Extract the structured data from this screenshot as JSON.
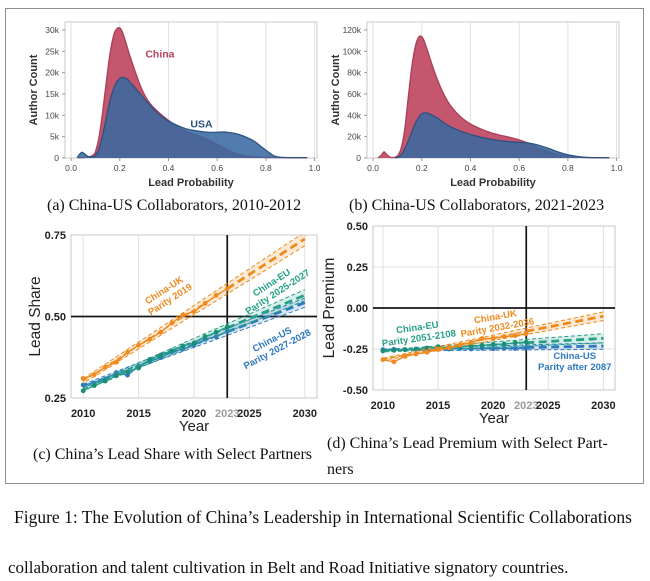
{
  "figure": {
    "caption": "Figure 1: The Evolution of China’s Leadership in International Scientific Collaborations",
    "body_text": "collaboration and talent cultivation in Belt and Road Initiative signatory countries."
  },
  "captions": {
    "a": "(a) China-US Collaborators, 2010-2012",
    "b": "(b) China-US Collaborators, 2021-2023",
    "c": "(c) China’s Lead Share with Select Partners",
    "d_line1": "(d) China’s Lead Premium with Select Part-",
    "d_line2": "ners"
  },
  "colors": {
    "grid": "#e1e1e1",
    "panel_border": "#c9c9c9",
    "axis_black": "#141414",
    "tick_text": "#444444",
    "gray_year": "#9a9a9a",
    "china_red": "#C4566E",
    "usa_blue": "#38689E",
    "uk_orange": "#EE8A1E",
    "eu_green": "#27A088",
    "us_blue": "#2F7ABF"
  },
  "chart_data": [
    {
      "id": "a",
      "type": "area",
      "xlabel": "Lead Probability",
      "ylabel": "Author Count",
      "xlim": [
        -0.025,
        1.01
      ],
      "ymax": 31875,
      "x_ticks": [
        0,
        0.2,
        0.4,
        0.6,
        0.8,
        1.0
      ],
      "x_tick_labels": [
        "0.0",
        "0.2",
        "0.4",
        "0.6",
        "0.8",
        "1.0"
      ],
      "y_ticks": [
        0,
        5000,
        10000,
        15000,
        20000,
        25000,
        30000
      ],
      "y_tick_labels": [
        "0",
        "5k",
        "10k",
        "15k",
        "20k",
        "25k",
        "30k"
      ],
      "series": [
        {
          "name": "China",
          "color": "#C4566E",
          "line_color": "#A63B55",
          "opacity": 1,
          "points": [
            [
              0.03,
              0
            ],
            [
              0.06,
              150
            ],
            [
              0.085,
              500
            ],
            [
              0.1,
              1500
            ],
            [
              0.115,
              5000
            ],
            [
              0.13,
              11000
            ],
            [
              0.145,
              18000
            ],
            [
              0.16,
              24500
            ],
            [
              0.175,
              28800
            ],
            [
              0.19,
              30400
            ],
            [
              0.205,
              30200
            ],
            [
              0.22,
              28000
            ],
            [
              0.24,
              24200
            ],
            [
              0.265,
              20000
            ],
            [
              0.29,
              16200
            ],
            [
              0.32,
              13100
            ],
            [
              0.36,
              10700
            ],
            [
              0.4,
              8800
            ],
            [
              0.44,
              7200
            ],
            [
              0.48,
              6100
            ],
            [
              0.52,
              5300
            ],
            [
              0.56,
              4400
            ],
            [
              0.6,
              3200
            ],
            [
              0.64,
              2000
            ],
            [
              0.68,
              1000
            ],
            [
              0.72,
              450
            ],
            [
              0.78,
              150
            ],
            [
              0.85,
              90
            ],
            [
              0.97,
              60
            ]
          ]
        },
        {
          "name": "USA",
          "color": "#38689E",
          "line_color": "#2B4F7E",
          "opacity": 0.87,
          "points": [
            [
              0.025,
              50
            ],
            [
              0.035,
              900
            ],
            [
              0.045,
              1350
            ],
            [
              0.055,
              1000
            ],
            [
              0.07,
              350
            ],
            [
              0.085,
              250
            ],
            [
              0.1,
              600
            ],
            [
              0.115,
              2200
            ],
            [
              0.13,
              5500
            ],
            [
              0.145,
              9500
            ],
            [
              0.16,
              13500
            ],
            [
              0.175,
              16300
            ],
            [
              0.19,
              18000
            ],
            [
              0.21,
              18900
            ],
            [
              0.23,
              18500
            ],
            [
              0.25,
              17300
            ],
            [
              0.28,
              15300
            ],
            [
              0.31,
              13300
            ],
            [
              0.35,
              10800
            ],
            [
              0.39,
              9000
            ],
            [
              0.43,
              7800
            ],
            [
              0.47,
              6900
            ],
            [
              0.51,
              6400
            ],
            [
              0.55,
              6100
            ],
            [
              0.59,
              6000
            ],
            [
              0.63,
              6100
            ],
            [
              0.67,
              5800
            ],
            [
              0.71,
              5100
            ],
            [
              0.75,
              4000
            ],
            [
              0.78,
              2700
            ],
            [
              0.81,
              1400
            ],
            [
              0.83,
              600
            ],
            [
              0.85,
              250
            ],
            [
              0.88,
              120
            ],
            [
              0.97,
              80
            ]
          ]
        }
      ],
      "annotations": [
        {
          "text": "China",
          "x": 0.305,
          "y": 23500,
          "color": "#B8415C"
        },
        {
          "text": "USA",
          "x": 0.49,
          "y": 7100,
          "color": "#2B4F7E"
        }
      ]
    },
    {
      "id": "b",
      "type": "area",
      "xlabel": "Lead Probability",
      "ylabel": "Author Count",
      "xlim": [
        -0.025,
        1.01
      ],
      "ymax": 127500,
      "x_ticks": [
        0,
        0.2,
        0.4,
        0.6,
        0.8,
        1.0
      ],
      "x_tick_labels": [
        "0.0",
        "0.2",
        "0.4",
        "0.6",
        "0.8",
        "1.0"
      ],
      "y_ticks": [
        0,
        20000,
        40000,
        60000,
        80000,
        100000,
        120000
      ],
      "y_tick_labels": [
        "0",
        "20k",
        "40k",
        "60k",
        "80k",
        "100k",
        "120k"
      ],
      "series": [
        {
          "name": "China",
          "color": "#C4566E",
          "line_color": "#A63B55",
          "opacity": 1,
          "points": [
            [
              0.02,
              100
            ],
            [
              0.035,
              3000
            ],
            [
              0.045,
              5800
            ],
            [
              0.055,
              3500
            ],
            [
              0.07,
              800
            ],
            [
              0.085,
              600
            ],
            [
              0.1,
              2000
            ],
            [
              0.115,
              9000
            ],
            [
              0.13,
              27000
            ],
            [
              0.145,
              58000
            ],
            [
              0.16,
              87000
            ],
            [
              0.175,
              106000
            ],
            [
              0.19,
              114000
            ],
            [
              0.205,
              112000
            ],
            [
              0.22,
              103000
            ],
            [
              0.24,
              89000
            ],
            [
              0.265,
              73000
            ],
            [
              0.29,
              60000
            ],
            [
              0.32,
              48500
            ],
            [
              0.36,
              38500
            ],
            [
              0.4,
              32000
            ],
            [
              0.44,
              27500
            ],
            [
              0.48,
              24000
            ],
            [
              0.52,
              21500
            ],
            [
              0.56,
              19500
            ],
            [
              0.6,
              17000
            ],
            [
              0.63,
              14500
            ],
            [
              0.66,
              11500
            ],
            [
              0.7,
              7800
            ],
            [
              0.74,
              4600
            ],
            [
              0.78,
              2400
            ],
            [
              0.82,
              1200
            ],
            [
              0.86,
              600
            ],
            [
              0.9,
              350
            ],
            [
              0.97,
              250
            ]
          ]
        },
        {
          "name": "USA",
          "color": "#38689E",
          "line_color": "#2B4F7E",
          "opacity": 0.87,
          "points": [
            [
              0.09,
              100
            ],
            [
              0.105,
              1000
            ],
            [
              0.12,
              4500
            ],
            [
              0.135,
              11000
            ],
            [
              0.15,
              19000
            ],
            [
              0.165,
              28000
            ],
            [
              0.18,
              35500
            ],
            [
              0.195,
              40500
            ],
            [
              0.21,
              42300
            ],
            [
              0.225,
              42000
            ],
            [
              0.245,
              40000
            ],
            [
              0.27,
              36500
            ],
            [
              0.3,
              31500
            ],
            [
              0.34,
              27000
            ],
            [
              0.38,
              23500
            ],
            [
              0.42,
              20800
            ],
            [
              0.46,
              18600
            ],
            [
              0.5,
              17000
            ],
            [
              0.54,
              15800
            ],
            [
              0.58,
              15000
            ],
            [
              0.62,
              14400
            ],
            [
              0.65,
              13600
            ],
            [
              0.68,
              12000
            ],
            [
              0.72,
              9000
            ],
            [
              0.76,
              5600
            ],
            [
              0.8,
              3000
            ],
            [
              0.84,
              1400
            ],
            [
              0.88,
              600
            ],
            [
              0.93,
              300
            ],
            [
              0.97,
              200
            ]
          ]
        }
      ],
      "annotations": []
    },
    {
      "id": "c",
      "type": "line",
      "xlabel": "Year",
      "ylabel": "Lead Share",
      "xlim": [
        2008.9,
        2031.1
      ],
      "ylim": [
        0.25,
        0.75
      ],
      "x_ticks": [
        {
          "v": 2010,
          "label": "2010",
          "grid": true,
          "gray": false
        },
        {
          "v": 2015,
          "label": "2015",
          "grid": true,
          "gray": false
        },
        {
          "v": 2020,
          "label": "2020",
          "grid": true,
          "gray": false
        },
        {
          "v": 2023,
          "label": "2023",
          "grid": false,
          "gray": true
        },
        {
          "v": 2025,
          "label": "2025",
          "grid": true,
          "gray": false
        },
        {
          "v": 2030,
          "label": "2030",
          "grid": true,
          "gray": false
        }
      ],
      "y_ticks": [
        {
          "v": 0.25,
          "label": "0.25",
          "grid": false
        },
        {
          "v": 0.5,
          "label": "0.50",
          "grid": false
        },
        {
          "v": 0.75,
          "label": "0.75",
          "grid": false
        }
      ],
      "hline": 0.5,
      "vline": 2023,
      "cut": 2023,
      "obs_start": 2010,
      "series": [
        {
          "name": "China-US",
          "color": "#2F7ABF",
          "trend": [
            [
              2010,
              0.287
            ],
            [
              2030,
              0.5424
            ]
          ],
          "band": [
            0.005,
            0.014
          ],
          "obs": [
            0.29,
            0.296,
            0.308,
            0.328,
            0.32,
            0.348,
            0.362,
            0.374,
            0.392,
            0.4,
            0.412,
            0.43,
            0.438,
            0.455
          ],
          "label": {
            "lines": [
              "China-US",
              "Parity 2027-2028"
            ],
            "x": 2027.3,
            "y": 0.413,
            "rot": -28
          }
        },
        {
          "name": "China-EU",
          "color": "#27A088",
          "dot": "#1C8D76",
          "trend": [
            [
              2010,
              0.278
            ],
            [
              2030,
              0.5655
            ]
          ],
          "band": [
            0.005,
            0.017
          ],
          "obs": [
            0.272,
            0.288,
            0.302,
            0.318,
            0.33,
            0.342,
            0.368,
            0.382,
            0.395,
            0.41,
            0.418,
            0.438,
            0.452,
            0.468
          ],
          "label": {
            "lines": [
              "China-EU",
              "Parity 2025-2027"
            ],
            "x": 2027.3,
            "y": 0.588,
            "rot": -33
          }
        },
        {
          "name": "China-UK",
          "color": "#EE8A1E",
          "trend": [
            [
              2010,
              0.302
            ],
            [
              2030,
              0.738
            ]
          ],
          "band": [
            0.007,
            0.021
          ],
          "obs": [
            0.31,
            0.322,
            0.345,
            0.36,
            0.39,
            0.412,
            0.43,
            0.452,
            0.48,
            0.505,
            0.515,
            0.54,
            0.565,
            0.585
          ],
          "label": {
            "lines": [
              "China-UK",
              "Parity 2019"
            ],
            "x": 2017.6,
            "y": 0.565,
            "rot": -33
          }
        }
      ]
    },
    {
      "id": "d",
      "type": "line",
      "xlabel": "Year",
      "ylabel": "Lead Premium",
      "xlim": [
        2009.1,
        2031.05
      ],
      "ylim": [
        -0.5,
        0.5
      ],
      "x_ticks": [
        {
          "v": 2010,
          "label": "2010",
          "grid": true,
          "gray": false
        },
        {
          "v": 2015,
          "label": "2015",
          "grid": true,
          "gray": false
        },
        {
          "v": 2020,
          "label": "2020",
          "grid": true,
          "gray": false
        },
        {
          "v": 2023,
          "label": "2023",
          "grid": false,
          "gray": true
        },
        {
          "v": 2025,
          "label": "2025",
          "grid": true,
          "gray": false
        },
        {
          "v": 2030,
          "label": "2030",
          "grid": true,
          "gray": false
        }
      ],
      "y_ticks": [
        {
          "v": -0.5,
          "label": "-0.50",
          "grid": false
        },
        {
          "v": -0.25,
          "label": "-0.25",
          "grid": true
        },
        {
          "v": 0.0,
          "label": "0.00",
          "grid": false
        },
        {
          "v": 0.25,
          "label": "0.25",
          "grid": true
        },
        {
          "v": 0.5,
          "label": "0.50",
          "grid": false
        }
      ],
      "hline": 0.0,
      "vline": 2023,
      "cut": 2023,
      "obs_start": 2010,
      "series": [
        {
          "name": "China-US",
          "color": "#2F7ABF",
          "trend": [
            [
              2010,
              -0.256
            ],
            [
              2030,
              -0.232
            ]
          ],
          "band": [
            0.006,
            0.02
          ],
          "obs": [
            -0.254,
            -0.252,
            -0.255,
            -0.25,
            -0.262,
            -0.248,
            -0.25,
            -0.247,
            -0.25,
            -0.245,
            -0.248,
            -0.244,
            -0.247,
            -0.243
          ],
          "label": {
            "lines": [
              "China-US",
              "Parity after 2087"
            ],
            "x": 2027.4,
            "y": -0.33,
            "rot": 0
          }
        },
        {
          "name": "China-EU",
          "color": "#27A088",
          "dot": "#1C8D76",
          "trend": [
            [
              2010,
              -0.262
            ],
            [
              2030,
              -0.185
            ]
          ],
          "band": [
            0.006,
            0.028
          ],
          "obs": [
            -0.262,
            -0.258,
            -0.253,
            -0.251,
            -0.244,
            -0.236,
            -0.243,
            -0.235,
            -0.232,
            -0.228,
            -0.222,
            -0.22,
            -0.212,
            -0.208
          ],
          "label": {
            "lines": [
              "China-EU",
              "Parity 2051-2108"
            ],
            "x": 2013.2,
            "y": -0.155,
            "rot": -8
          }
        },
        {
          "name": "China-UK",
          "color": "#EE8A1E",
          "trend": [
            [
              2010,
              -0.313
            ],
            [
              2030,
              -0.05
            ]
          ],
          "band": [
            0.007,
            0.026
          ],
          "obs": [
            -0.315,
            -0.328,
            -0.295,
            -0.28,
            -0.27,
            -0.253,
            -0.243,
            -0.225,
            -0.21,
            -0.186,
            -0.185,
            -0.175,
            -0.168,
            -0.157
          ],
          "label": {
            "lines": [
              "China-UK",
              "Parity 2032-2036"
            ],
            "x": 2020.3,
            "y": -0.09,
            "rot": -10
          }
        }
      ]
    }
  ]
}
